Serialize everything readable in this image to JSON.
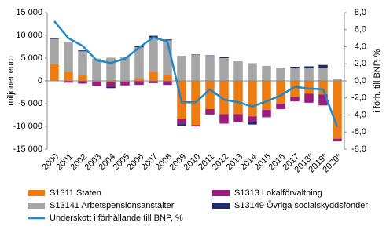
{
  "chart_data": {
    "type": "bar",
    "y_label": "miljoner euro",
    "y2_label": "i förh. till BNP, %",
    "categories": [
      "2000",
      "2001",
      "2002",
      "2003",
      "2004",
      "2005",
      "2006",
      "2007",
      "2008",
      "2009",
      "2010",
      "2011",
      "2012",
      "2013",
      "2014",
      "2015",
      "2016",
      "2017",
      "2018*",
      "2019*",
      "2020*"
    ],
    "series": [
      {
        "name": "S1311 Staten",
        "color": "#ed7d13",
        "values": [
          3700,
          2000,
          1200,
          -200,
          -300,
          -200,
          600,
          1900,
          1300,
          -8300,
          -9700,
          -6200,
          -7300,
          -7300,
          -7800,
          -6400,
          -5000,
          -3500,
          -2800,
          -3000,
          -12700
        ]
      },
      {
        "name": "S1313 Lokalförvaltning",
        "color": "#9b1b7e",
        "values": [
          100,
          -400,
          -600,
          -1000,
          -1000,
          -800,
          -900,
          -500,
          -900,
          -1200,
          -300,
          -1200,
          -2100,
          -1700,
          -1300,
          -1500,
          -1200,
          -1000,
          -2000,
          -2400,
          -400
        ]
      },
      {
        "name": "S13141 Arbetspensionsanstalter",
        "color": "#a6a6a6",
        "values": [
          5400,
          6500,
          5300,
          4900,
          5100,
          5300,
          6800,
          7600,
          7600,
          5500,
          5700,
          5500,
          5000,
          4300,
          3900,
          3300,
          2900,
          2800,
          2800,
          2900,
          500
        ]
      },
      {
        "name": "S13149 Övriga socialskyddsfonder",
        "color": "#1f2a6b",
        "values": [
          200,
          0,
          200,
          0,
          -300,
          0,
          200,
          400,
          200,
          -400,
          100,
          100,
          300,
          0,
          -500,
          -100,
          0,
          300,
          400,
          600,
          -200
        ]
      }
    ],
    "line": {
      "name": "Underskott i förhållande till BNP, %",
      "color": "#1e88c8",
      "axis": "y2",
      "values": [
        7.0,
        5.0,
        4.1,
        2.4,
        2.1,
        2.6,
        3.9,
        5.1,
        4.6,
        -2.5,
        -2.5,
        -1.0,
        -2.2,
        -2.5,
        -3.0,
        -2.4,
        -1.7,
        -0.7,
        -0.9,
        -1.0,
        -5.4
      ]
    },
    "ylim": [
      -15000,
      15000
    ],
    "yticks": [
      {
        "value": -15000,
        "label": "-15 000"
      },
      {
        "value": -10000,
        "label": "-10 000"
      },
      {
        "value": -5000,
        "label": "-5 000"
      },
      0,
      {
        "value": 5000,
        "label": "5 000"
      },
      {
        "value": 10000,
        "label": "10 000"
      },
      {
        "value": 15000,
        "label": "15 000"
      }
    ],
    "y2lim": [
      -8,
      8
    ],
    "y2ticks": [
      {
        "value": -8,
        "label": "-8,0"
      },
      {
        "value": -6,
        "label": "-6,0"
      },
      {
        "value": -4,
        "label": "-4,0"
      },
      {
        "value": -2,
        "label": "-2,0"
      },
      {
        "value": 0,
        "label": "0,0"
      },
      {
        "value": 2,
        "label": "2,0"
      },
      {
        "value": 4,
        "label": "4,0"
      },
      {
        "value": 6,
        "label": "6,0"
      },
      {
        "value": 8,
        "label": "8,0"
      }
    ]
  }
}
